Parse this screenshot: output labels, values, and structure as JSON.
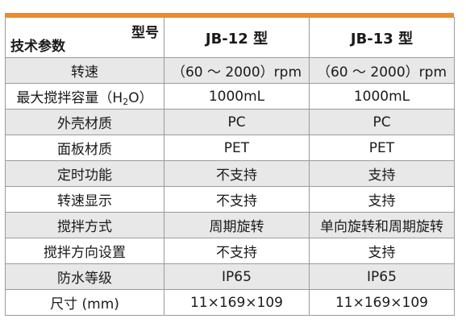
{
  "table": {
    "corner_top": "型号",
    "corner_bottom": "技术参数",
    "models": [
      "JB-12 型",
      "JB-13 型"
    ],
    "rows": [
      {
        "param": "转速",
        "jb12": "（60 ～ 2000）rpm",
        "jb13": "（60 ～ 2000）rpm"
      },
      {
        "param_prefix": "最大搅拌容量（H",
        "param_sub": "2",
        "param_suffix": "O）",
        "jb12": "1000mL",
        "jb13": "1000mL"
      },
      {
        "param": "外壳材质",
        "jb12": "PC",
        "jb13": "PC"
      },
      {
        "param": "面板材质",
        "jb12": "PET",
        "jb13": "PET"
      },
      {
        "param": "定时功能",
        "jb12": "不支持",
        "jb13": "支持"
      },
      {
        "param": "转速显示",
        "jb12": "不支持",
        "jb13": "支持"
      },
      {
        "param": "搅拌方式",
        "jb12": "周期旋转",
        "jb13": "单向旋转和周期旋转"
      },
      {
        "param": "搅拌方向设置",
        "jb12": "不支持",
        "jb13": "支持"
      },
      {
        "param": "防水等级",
        "jb12": "IP65",
        "jb13": "IP65"
      },
      {
        "param": "尺寸 (mm)",
        "jb12": "11×169×109",
        "jb13": "11×169×109"
      }
    ]
  },
  "colors": {
    "accent_bar": "#f08a24",
    "alt_row": "#e8e8e8",
    "border": "#9a9a9a"
  }
}
